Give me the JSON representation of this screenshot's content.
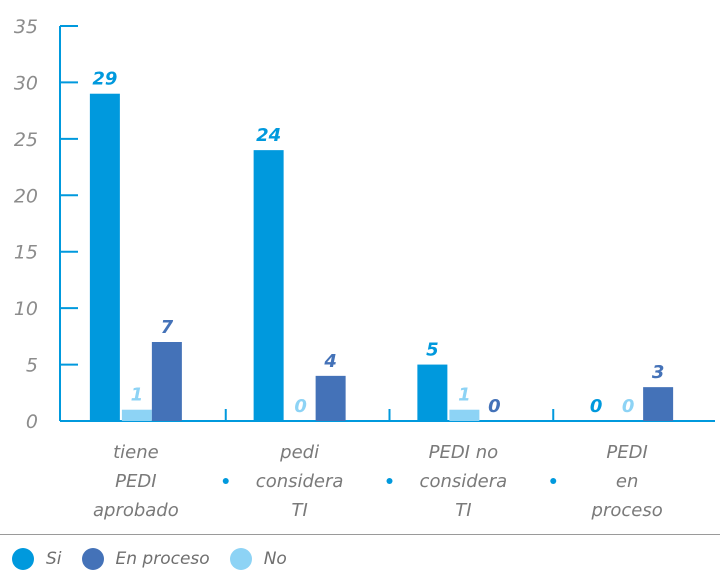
{
  "chart_data": {
    "type": "bar",
    "categories": [
      [
        "tiene",
        "PEDI",
        "aprobado"
      ],
      [
        "pedi",
        "considera",
        "TI"
      ],
      [
        "PEDI no",
        "considera",
        "TI"
      ],
      [
        "PEDI",
        "en",
        "proceso"
      ]
    ],
    "series": [
      {
        "name": "Si",
        "color": "#0099dd",
        "values": [
          29,
          24,
          5,
          0
        ]
      },
      {
        "name": "No",
        "color": "#8dd3f5",
        "values": [
          1,
          0,
          1,
          0
        ]
      },
      {
        "name": "En proceso",
        "color": "#4472b8",
        "values": [
          7,
          4,
          0,
          3
        ]
      }
    ],
    "ylim": [
      0,
      35
    ],
    "yticks": [
      "0",
      "5",
      "10",
      "15",
      "20",
      "25",
      "30",
      "35"
    ],
    "legend_position": "bottom-left",
    "axis_color": "#0099dd"
  },
  "legend": [
    {
      "label": "Si",
      "color": "#0099dd"
    },
    {
      "label": "En proceso",
      "color": "#4472b8"
    },
    {
      "label": "No",
      "color": "#8dd3f5"
    }
  ]
}
